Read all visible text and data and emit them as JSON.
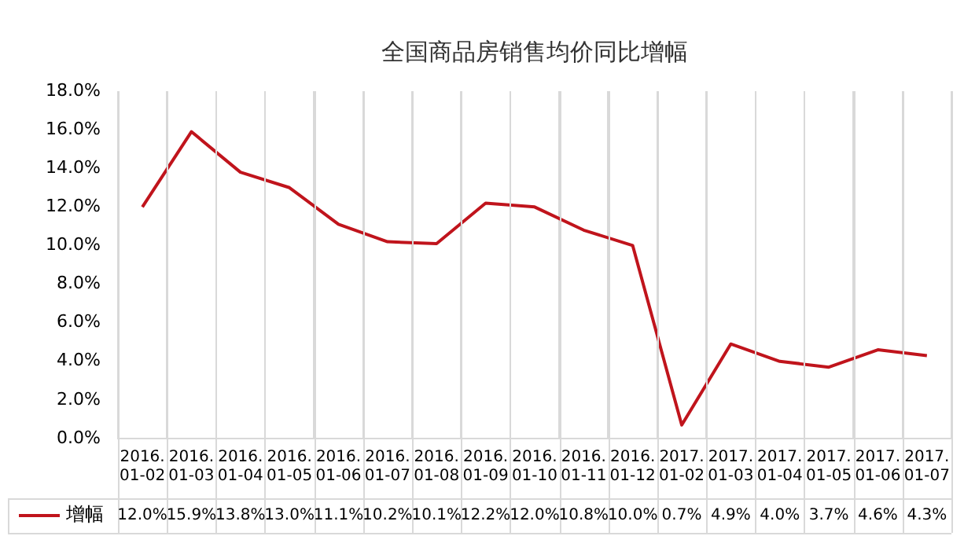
{
  "chart_data": {
    "type": "line",
    "title": "全国商品房销售均价同比增幅",
    "categories": [
      "2016.01-02",
      "2016.01-03",
      "2016.01-04",
      "2016.01-05",
      "2016.01-06",
      "2016.01-07",
      "2016.01-08",
      "2016.01-09",
      "2016.01-10",
      "2016.01-11",
      "2016.01-12",
      "2017.01-02",
      "2017.01-03",
      "2017.01-04",
      "2017.01-05",
      "2017.01-06",
      "2017.01-07"
    ],
    "series": [
      {
        "name": "增幅",
        "color": "#c0141c",
        "values": [
          12.0,
          15.9,
          13.8,
          13.0,
          11.1,
          10.2,
          10.1,
          12.2,
          12.0,
          10.8,
          10.0,
          0.7,
          4.9,
          4.0,
          3.7,
          4.6,
          4.3
        ],
        "value_labels": [
          "12.0%",
          "15.9%",
          "13.8%",
          "13.0%",
          "11.1%",
          "10.2%",
          "10.1%",
          "12.2%",
          "12.0%",
          "10.8%",
          "10.0%",
          "0.7%",
          "4.9%",
          "4.0%",
          "3.7%",
          "4.6%",
          "4.3%"
        ]
      }
    ],
    "ylim": [
      0,
      18
    ],
    "yticks": [
      {
        "value": 0,
        "label": "0.0%"
      },
      {
        "value": 2,
        "label": "2.0%"
      },
      {
        "value": 4,
        "label": "4.0%"
      },
      {
        "value": 6,
        "label": "6.0%"
      },
      {
        "value": 8,
        "label": "8.0%"
      },
      {
        "value": 10,
        "label": "10.0%"
      },
      {
        "value": 12,
        "label": "12.0%"
      },
      {
        "value": 14,
        "label": "14.0%"
      },
      {
        "value": 16,
        "label": "16.0%"
      },
      {
        "value": 18,
        "label": "18.0%"
      }
    ],
    "grid": "x",
    "legend": "bottom left",
    "marker": "none",
    "line_style": "solid"
  }
}
